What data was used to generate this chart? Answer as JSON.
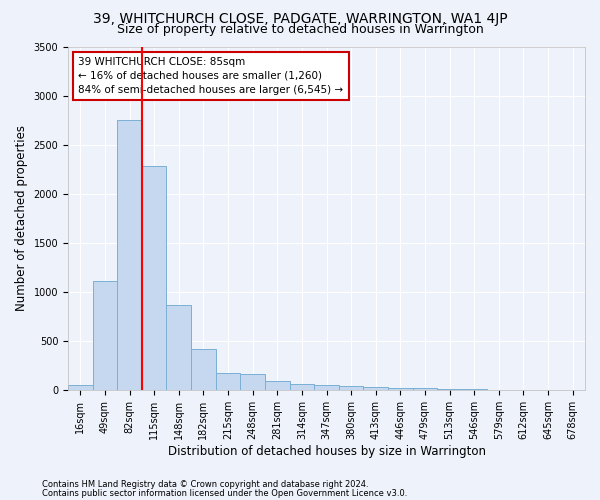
{
  "title1": "39, WHITCHURCH CLOSE, PADGATE, WARRINGTON, WA1 4JP",
  "title2": "Size of property relative to detached houses in Warrington",
  "xlabel": "Distribution of detached houses by size in Warrington",
  "ylabel": "Number of detached properties",
  "bin_labels": [
    "16sqm",
    "49sqm",
    "82sqm",
    "115sqm",
    "148sqm",
    "182sqm",
    "215sqm",
    "248sqm",
    "281sqm",
    "314sqm",
    "347sqm",
    "380sqm",
    "413sqm",
    "446sqm",
    "479sqm",
    "513sqm",
    "546sqm",
    "579sqm",
    "612sqm",
    "645sqm",
    "678sqm"
  ],
  "bar_values": [
    50,
    1105,
    2750,
    2280,
    870,
    420,
    168,
    160,
    88,
    60,
    50,
    35,
    28,
    22,
    15,
    8,
    5,
    3,
    2,
    1,
    0
  ],
  "bar_color": "#c5d8f0",
  "bar_edge_color": "#7bafd4",
  "red_line_x": 2,
  "ylim": [
    0,
    3500
  ],
  "yticks": [
    0,
    500,
    1000,
    1500,
    2000,
    2500,
    3000,
    3500
  ],
  "annotation_text": "39 WHITCHURCH CLOSE: 85sqm\n← 16% of detached houses are smaller (1,260)\n84% of semi-detached houses are larger (6,545) →",
  "annotation_box_color": "#ffffff",
  "annotation_box_edge_color": "#cc0000",
  "footnote1": "Contains HM Land Registry data © Crown copyright and database right 2024.",
  "footnote2": "Contains public sector information licensed under the Open Government Licence v3.0.",
  "background_color": "#eef2fb",
  "grid_color": "#ffffff",
  "title_fontsize": 10,
  "subtitle_fontsize": 9,
  "axis_label_fontsize": 8.5,
  "tick_fontsize": 7,
  "footnote_fontsize": 6
}
